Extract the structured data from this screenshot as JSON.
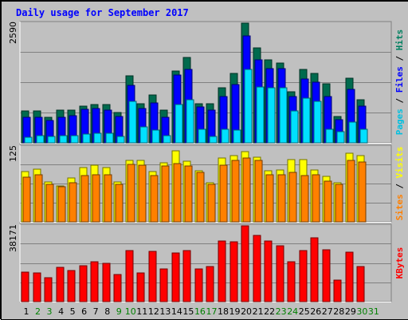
{
  "chart_data": {
    "type": "bar",
    "title": "Daily usage for September 2017",
    "title_color": "#0000ff",
    "background": "#c0c0c0",
    "days": [
      {
        "label": "1",
        "weekend": false
      },
      {
        "label": "2",
        "weekend": true
      },
      {
        "label": "3",
        "weekend": true
      },
      {
        "label": "4",
        "weekend": false
      },
      {
        "label": "5",
        "weekend": false
      },
      {
        "label": "6",
        "weekend": false
      },
      {
        "label": "7",
        "weekend": false
      },
      {
        "label": "8",
        "weekend": false
      },
      {
        "label": "9",
        "weekend": true
      },
      {
        "label": "10",
        "weekend": true
      },
      {
        "label": "11",
        "weekend": false
      },
      {
        "label": "12",
        "weekend": false
      },
      {
        "label": "13",
        "weekend": false
      },
      {
        "label": "14",
        "weekend": false
      },
      {
        "label": "15",
        "weekend": false
      },
      {
        "label": "16",
        "weekend": true
      },
      {
        "label": "17",
        "weekend": true
      },
      {
        "label": "18",
        "weekend": false
      },
      {
        "label": "19",
        "weekend": false
      },
      {
        "label": "20",
        "weekend": false
      },
      {
        "label": "21",
        "weekend": false
      },
      {
        "label": "22",
        "weekend": false
      },
      {
        "label": "23",
        "weekend": true
      },
      {
        "label": "24",
        "weekend": true
      },
      {
        "label": "25",
        "weekend": false
      },
      {
        "label": "26",
        "weekend": false
      },
      {
        "label": "27",
        "weekend": false
      },
      {
        "label": "28",
        "weekend": false
      },
      {
        "label": "29",
        "weekend": false
      },
      {
        "label": "30",
        "weekend": true
      },
      {
        "label": "31",
        "weekend": true
      }
    ],
    "weekday_color": "#000000",
    "weekend_color": "#008000",
    "panels": [
      {
        "max_label": "2590",
        "max": 2590,
        "series_labels": [
          {
            "text": "Pages",
            "color": "#00c0e0"
          },
          {
            "text": " / ",
            "color": "#000000"
          },
          {
            "text": "Files",
            "color": "#0000ff"
          },
          {
            "text": " / ",
            "color": "#000000"
          },
          {
            "text": "Hits",
            "color": "#008060"
          }
        ],
        "series": [
          {
            "color": "#006a4e",
            "values": [
              692,
              693,
              556,
              711,
              710,
              794,
              831,
              831,
              653,
              1448,
              845,
              1035,
              700,
              1560,
              1852,
              839,
              839,
              1200,
              1494,
              2590,
              2059,
              1802,
              1734,
              1104,
              1593,
              1501,
              1278,
              563,
              1397,
              924,
              null
            ]
          },
          {
            "color": "#0000ff",
            "values": [
              548,
              548,
              485,
              560,
              579,
              731,
              746,
              712,
              571,
              1250,
              740,
              859,
              560,
              1472,
              1590,
              771,
              707,
              1009,
              1269,
              2321,
              1801,
              1600,
              1600,
              1000,
              1380,
              1309,
              1000,
              493,
              1158,
              798,
              null
            ]
          },
          {
            "color": "#00e0ff",
            "values": [
              120,
              148,
              136,
              147,
              155,
              186,
              205,
              205,
              138,
              905,
              338,
              283,
              164,
              827,
              929,
              300,
              140,
              300,
              269,
              1592,
              1209,
              1190,
              1190,
              684,
              975,
              900,
              300,
              237,
              450,
              290,
              null
            ]
          }
        ]
      },
      {
        "max_label": "125",
        "max": 125,
        "series_labels": [
          {
            "text": "Sites",
            "color": "#ff8000"
          },
          {
            "text": " / ",
            "color": "#000000"
          },
          {
            "text": "Visits",
            "color": "#ffff00"
          }
        ],
        "series": [
          {
            "color": "#ffff00",
            "values": [
              84,
              88,
              67,
              60,
              73,
              91,
              95,
              91,
              67,
              103,
              102,
              84,
              99,
              118,
              101,
              85,
              65,
              106,
              110,
              117,
              108,
              85,
              86,
              104,
              104,
              87,
              76,
              65,
              115,
              111,
              null
            ]
          },
          {
            "color": "#ff8000",
            "values": [
              74,
              79,
              63,
              58,
              65,
              77,
              78,
              79,
              62,
              96,
              94,
              77,
              93,
              97,
              93,
              82,
              63,
              95,
              102,
              106,
              103,
              79,
              78,
              83,
              77,
              79,
              68,
              63,
              102,
              100,
              null
            ]
          }
        ]
      },
      {
        "max_label": "38171",
        "max": 38171,
        "series_labels": [
          {
            "text": "KBytes",
            "color": "#ff0000"
          }
        ],
        "series": [
          {
            "color": "#ff0000",
            "values": [
              14800,
              14400,
              12000,
              17300,
              15500,
              18000,
              20000,
              19200,
              13500,
              25600,
              14500,
              25200,
              16500,
              24400,
              25600,
              16600,
              17500,
              30600,
              30300,
              38171,
              33300,
              30600,
              28000,
              20000,
              25800,
              32300,
              26000,
              10800,
              24800,
              17500,
              null
            ]
          }
        ]
      }
    ]
  }
}
